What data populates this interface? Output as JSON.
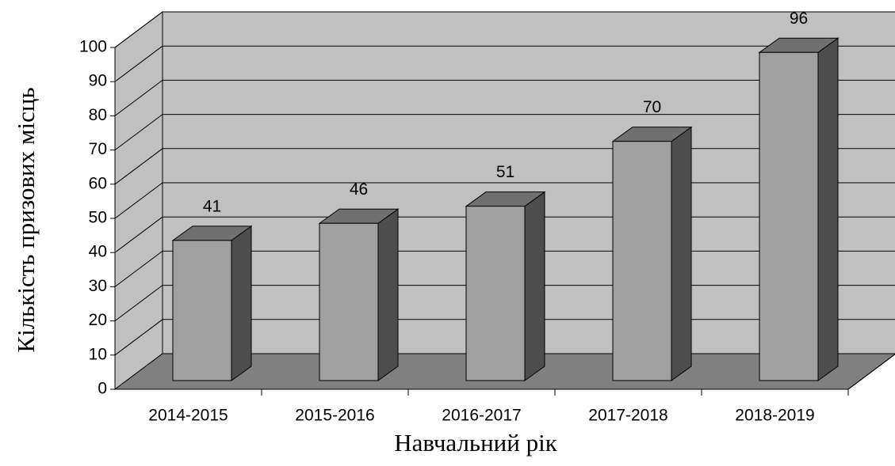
{
  "chart_data": {
    "type": "bar3d",
    "xlabel": "Навчальний рік",
    "ylabel": "Кількість призових місць",
    "categories": [
      "2014-2015",
      "2015-2016",
      "2016-2017",
      "2017-2018",
      "2018-2019"
    ],
    "values": [
      41,
      46,
      51,
      70,
      96
    ],
    "ylim": [
      0,
      100
    ],
    "yticks": [
      0,
      10,
      20,
      30,
      40,
      50,
      60,
      70,
      80,
      90,
      100
    ],
    "grid": true,
    "color": "#a0a0a0"
  }
}
